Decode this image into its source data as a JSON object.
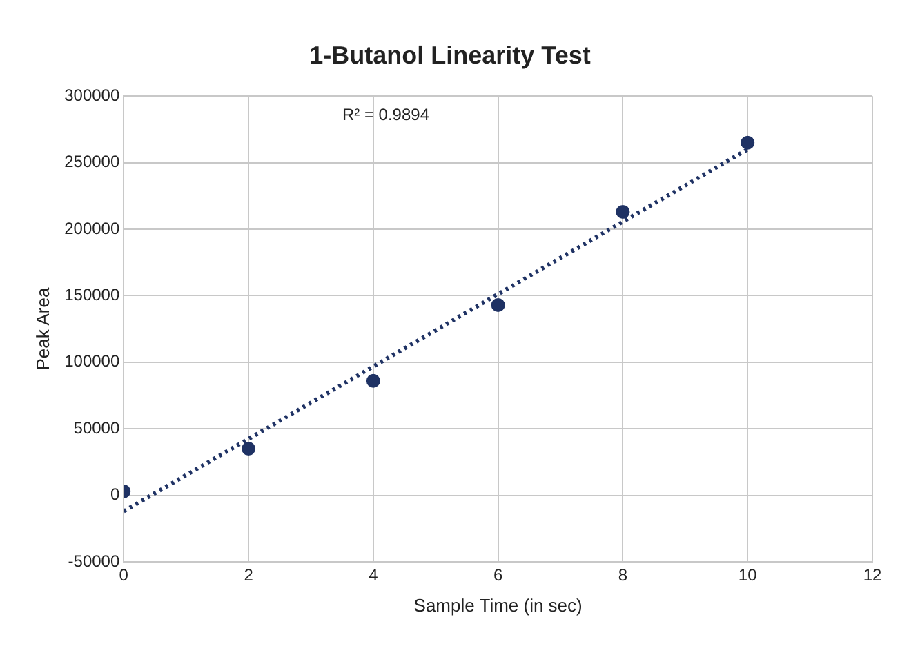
{
  "chart_data": {
    "type": "scatter",
    "title": "1-Butanol Linearity Test",
    "xlabel": "Sample Time (in sec)",
    "ylabel": "Peak Area",
    "x": [
      0,
      2,
      4,
      6,
      8,
      10
    ],
    "series": [
      {
        "color": "#1f3264",
        "values": [
          3000,
          35000,
          86000,
          143000,
          213000,
          265000
        ],
        "marker": "circle"
      },
      {
        "type": "line",
        "color": "#1f3264",
        "x": [
          0,
          10
        ],
        "values": [
          -12000,
          260000
        ],
        "line_style": "dotted",
        "marker": "none"
      }
    ],
    "xlim": [
      0,
      12
    ],
    "xticks": [
      0,
      2,
      4,
      6,
      8,
      10,
      12
    ],
    "ylim": [
      -50000,
      300000
    ],
    "yticks": [
      -50000,
      0,
      50000,
      100000,
      150000,
      200000,
      250000,
      300000
    ],
    "grid": true,
    "annotations": [
      "R² = 0.9894"
    ]
  }
}
